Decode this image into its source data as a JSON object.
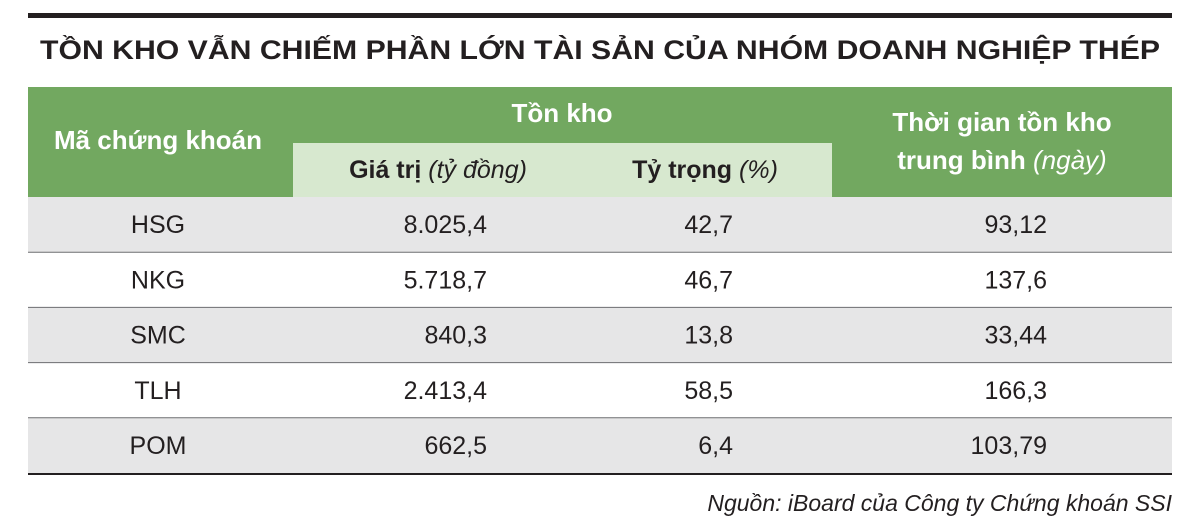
{
  "title": "TỒN KHO VẪN CHIẾM PHẦN LỚN TÀI SẢN CỦA NHÓM DOANH NGHIỆP THÉP",
  "table": {
    "header": {
      "code": "Mã chứng khoán",
      "group": "Tồn kho",
      "value": {
        "label": "Giá trị",
        "unit": "(tỷ đồng)"
      },
      "share": {
        "label": "Tỷ trọng",
        "unit": "(%)"
      },
      "days": {
        "label_line1": "Thời gian tồn kho",
        "label_line2": "trung bình",
        "unit": "(ngày)"
      }
    },
    "rows": [
      [
        "HSG",
        "8.025,4",
        "42,7",
        "93,12"
      ],
      [
        "NKG",
        "5.718,7",
        "46,7",
        "137,6"
      ],
      [
        "SMC",
        "840,3",
        "13,8",
        "33,44"
      ],
      [
        "TLH",
        "2.413,4",
        "58,5",
        "166,3"
      ],
      [
        "POM",
        "662,5",
        "6,4",
        "103,79"
      ]
    ]
  },
  "source": "Nguồn: iBoard của Công ty Chứng khoán SSI"
}
